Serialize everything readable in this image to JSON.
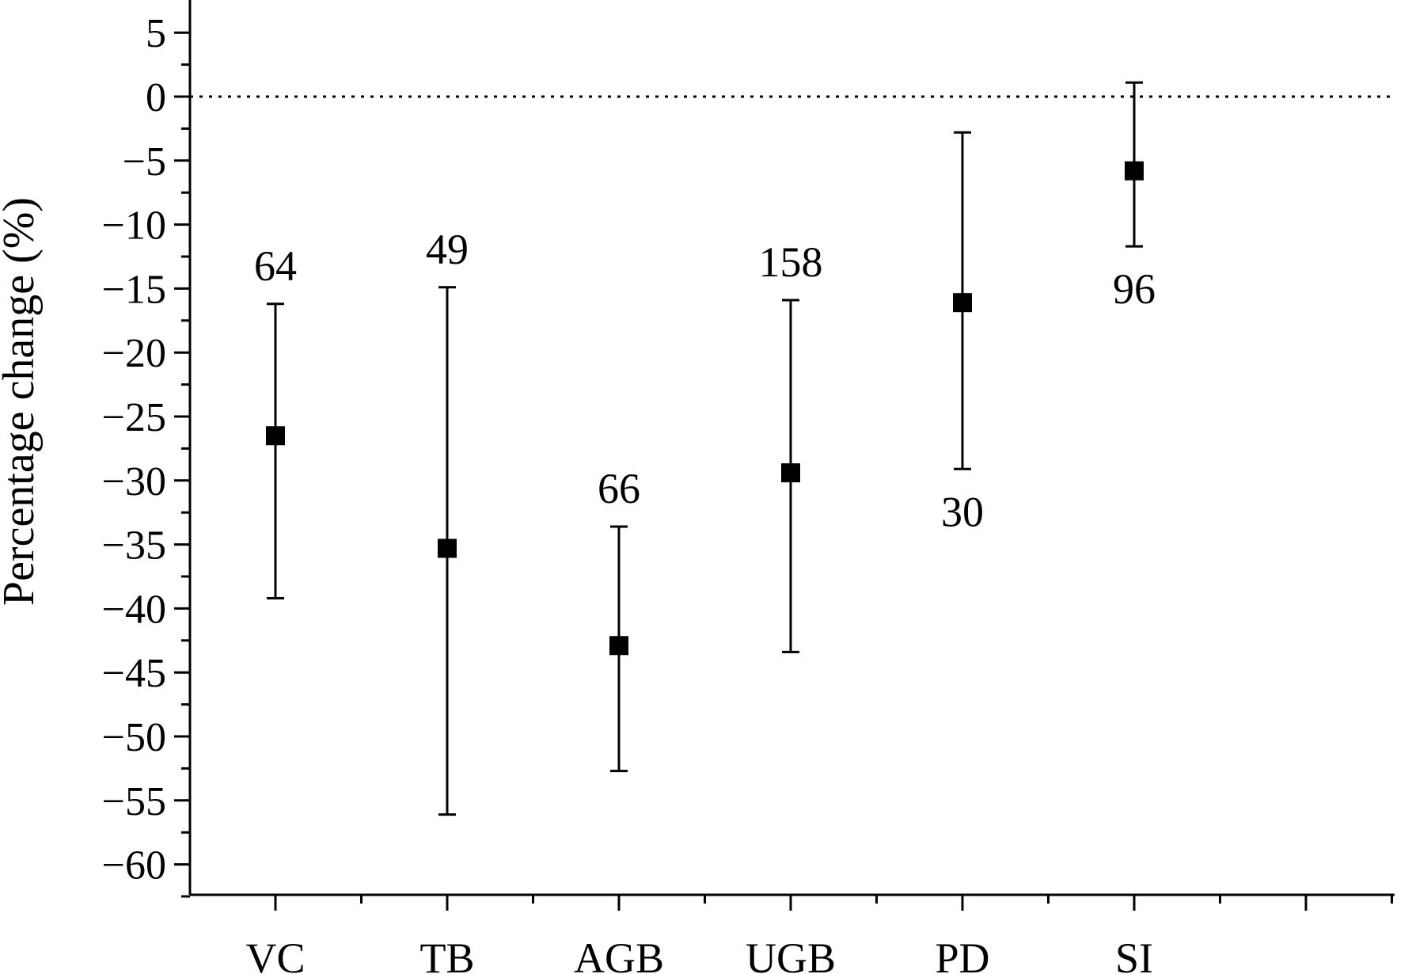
{
  "chart_data": {
    "type": "scatter",
    "title": "",
    "xlabel": "",
    "ylabel": "Percentage change (%)",
    "categories": [
      "VC",
      "TB",
      "AGB",
      "UGB",
      "PD",
      "SI"
    ],
    "series": [
      {
        "mean": [
          -26.5,
          -35.3,
          -42.9,
          -29.4,
          -16.1,
          -5.8
        ],
        "lower": [
          -39.2,
          -56.1,
          -52.7,
          -43.4,
          -29.1,
          -11.7
        ],
        "upper": [
          -16.2,
          -14.9,
          -33.6,
          -15.9,
          -2.8,
          1.1
        ],
        "sample_size": [
          "64",
          "49",
          "66",
          "158",
          "30",
          "96"
        ],
        "label_position": [
          "above",
          "above",
          "above",
          "above",
          "below",
          "below"
        ]
      }
    ],
    "ylim": [
      -63,
      7
    ],
    "yticks": [
      5,
      0,
      -5,
      -10,
      -15,
      -20,
      -25,
      -30,
      -35,
      -40,
      -45,
      -50,
      -55,
      -60
    ],
    "ytick_labels": [
      "5",
      "0",
      "−5",
      "−10",
      "−15",
      "−20",
      "−25",
      "−30",
      "−35",
      "−40",
      "−45",
      "−50",
      "−55",
      "−60"
    ],
    "reference_line": 0,
    "grid": false,
    "legend": "none"
  }
}
